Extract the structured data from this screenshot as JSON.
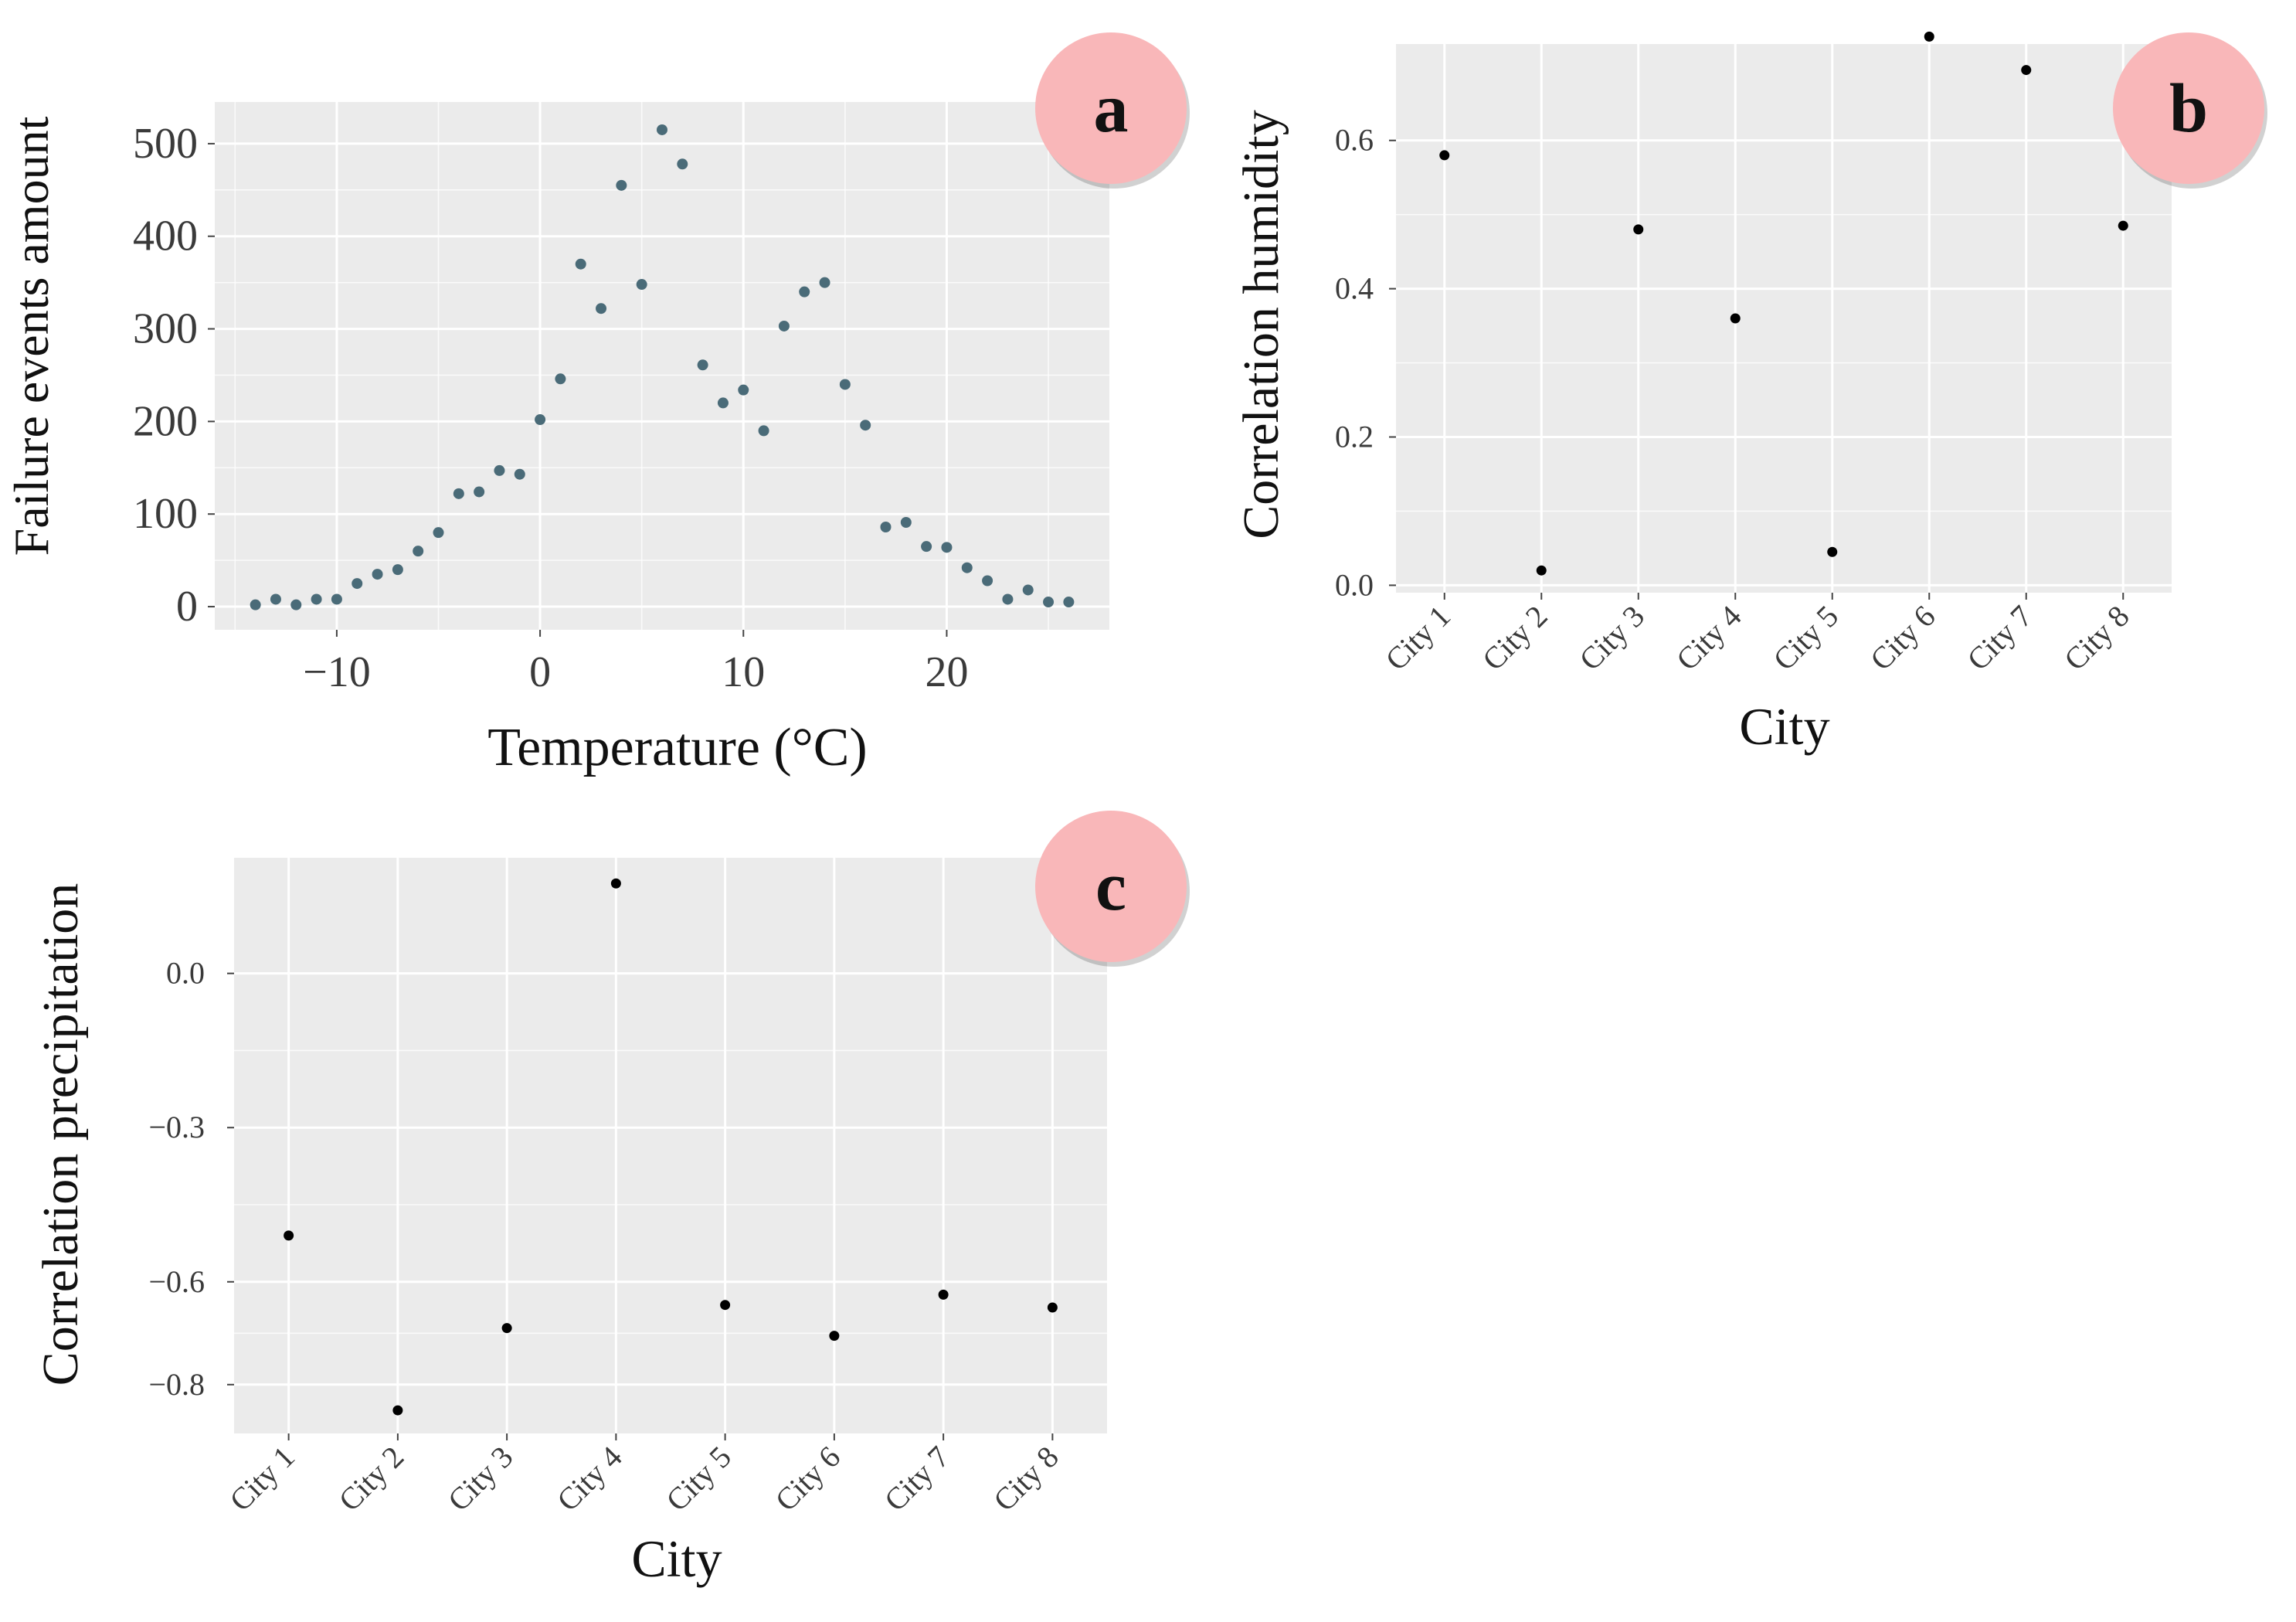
{
  "figure": {
    "panels": [
      "a",
      "b",
      "c"
    ]
  },
  "colors": {
    "panel_bg": "#ebebeb",
    "grid": "#ffffff",
    "point_a": "#4a6b78",
    "point_bc": "#000000",
    "badge": "#f9b7b9"
  },
  "chart_data": [
    {
      "id": "a",
      "type": "scatter",
      "title": "",
      "xlabel": "Temperature (°C)",
      "ylabel": "Failure events amount",
      "xlim": [
        -16,
        28
      ],
      "ylim": [
        -25,
        545
      ],
      "x_ticks": [
        -10,
        0,
        10,
        20
      ],
      "x_tick_labels": [
        "−10",
        "0",
        "10",
        "20"
      ],
      "y_ticks": [
        0,
        100,
        200,
        300,
        400,
        500
      ],
      "y_tick_labels": [
        "0",
        "100",
        "200",
        "300",
        "400",
        "500"
      ],
      "x": [
        -14,
        -13,
        -12,
        -11,
        -10,
        -9,
        -8,
        -7,
        -6,
        -5,
        -4,
        -3,
        -2,
        -1,
        0,
        1,
        2,
        3,
        4,
        5,
        6,
        7,
        8,
        9,
        10,
        11,
        12,
        13,
        14,
        15,
        16,
        17,
        18,
        19,
        20,
        21,
        22,
        23,
        24,
        25,
        26
      ],
      "y": [
        2,
        8,
        2,
        8,
        8,
        25,
        35,
        40,
        60,
        80,
        122,
        124,
        147,
        143,
        202,
        246,
        370,
        322,
        455,
        348,
        515,
        478,
        261,
        220,
        234,
        190,
        303,
        340,
        350,
        240,
        196,
        86,
        91,
        65,
        64,
        42,
        28,
        8,
        18,
        5,
        5
      ]
    },
    {
      "id": "b",
      "type": "scatter",
      "title": "",
      "xlabel": "City",
      "ylabel": "Correlation humidity",
      "ylim": [
        -0.01,
        0.73
      ],
      "categories": [
        "City 1",
        "City 2",
        "City 3",
        "City 4",
        "City 5",
        "City 6",
        "City 7",
        "City 8"
      ],
      "y_ticks": [
        0.0,
        0.2,
        0.4,
        0.6
      ],
      "y_tick_labels": [
        "0.0",
        "0.2",
        "0.4",
        "0.6"
      ],
      "values": [
        0.58,
        0.02,
        0.48,
        0.36,
        0.045,
        0.74,
        0.695,
        0.485
      ]
    },
    {
      "id": "c",
      "type": "scatter",
      "title": "",
      "xlabel": "City",
      "ylabel": "Correlation precipitation",
      "ylim": [
        -0.895,
        0.225
      ],
      "categories": [
        "City 1",
        "City 2",
        "City 3",
        "City 4",
        "City 5",
        "City 6",
        "City 7",
        "City 8"
      ],
      "y_ticks": [
        0.0,
        -0.3,
        -0.6,
        -0.8
      ],
      "y_tick_labels": [
        "0.0",
        "−0.3",
        "−0.6",
        "−0.8"
      ],
      "values": [
        -0.51,
        -0.85,
        -0.69,
        0.175,
        -0.645,
        -0.705,
        -0.625,
        -0.65
      ]
    }
  ]
}
